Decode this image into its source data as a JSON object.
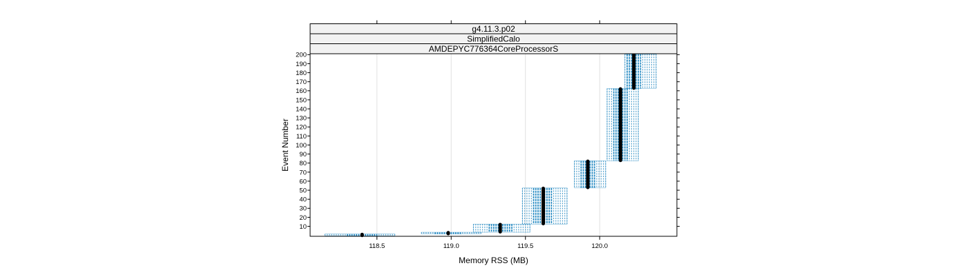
{
  "chart_data": {
    "type": "scatter",
    "strips": [
      "g4.11.3.p02",
      "SimplifiedCalo",
      "AMDEPYC776364CoreProcessorS"
    ],
    "xlabel": "Memory RSS (MB)",
    "ylabel": "Event Number",
    "xlim": [
      118.05,
      120.52
    ],
    "ylim": [
      -1,
      201
    ],
    "xticks": [
      118.5,
      119.0,
      119.5,
      120.0
    ],
    "xtick_labels": [
      "118.5",
      "119.0",
      "119.5",
      "120.0"
    ],
    "yticks": [
      10,
      20,
      30,
      40,
      50,
      60,
      70,
      80,
      90,
      100,
      110,
      120,
      130,
      140,
      150,
      160,
      170,
      180,
      190,
      200
    ],
    "grid_x": true,
    "colors": {
      "points": "#1f86c0",
      "median": "#000000",
      "strip_bg": "#f2f2f2",
      "grid": "#e0e0e0"
    },
    "groups": [
      {
        "x_min": 118.15,
        "x_max": 118.62,
        "y_min": 0,
        "y_max": 1,
        "median_x": 118.4
      },
      {
        "x_min": 118.8,
        "x_max": 119.2,
        "y_min": 2,
        "y_max": 3,
        "median_x": 118.98
      },
      {
        "x_min": 119.15,
        "x_max": 119.53,
        "y_min": 4,
        "y_max": 12,
        "median_x": 119.33
      },
      {
        "x_min": 119.48,
        "x_max": 119.78,
        "y_min": 13,
        "y_max": 52,
        "median_x": 119.62
      },
      {
        "x_min": 119.83,
        "x_max": 120.04,
        "y_min": 53,
        "y_max": 82,
        "median_x": 119.92
      },
      {
        "x_min": 120.05,
        "x_max": 120.26,
        "y_min": 83,
        "y_max": 162,
        "median_x": 120.14
      },
      {
        "x_min": 120.17,
        "x_max": 120.38,
        "y_min": 163,
        "y_max": 200,
        "median_x": 120.23
      }
    ]
  }
}
